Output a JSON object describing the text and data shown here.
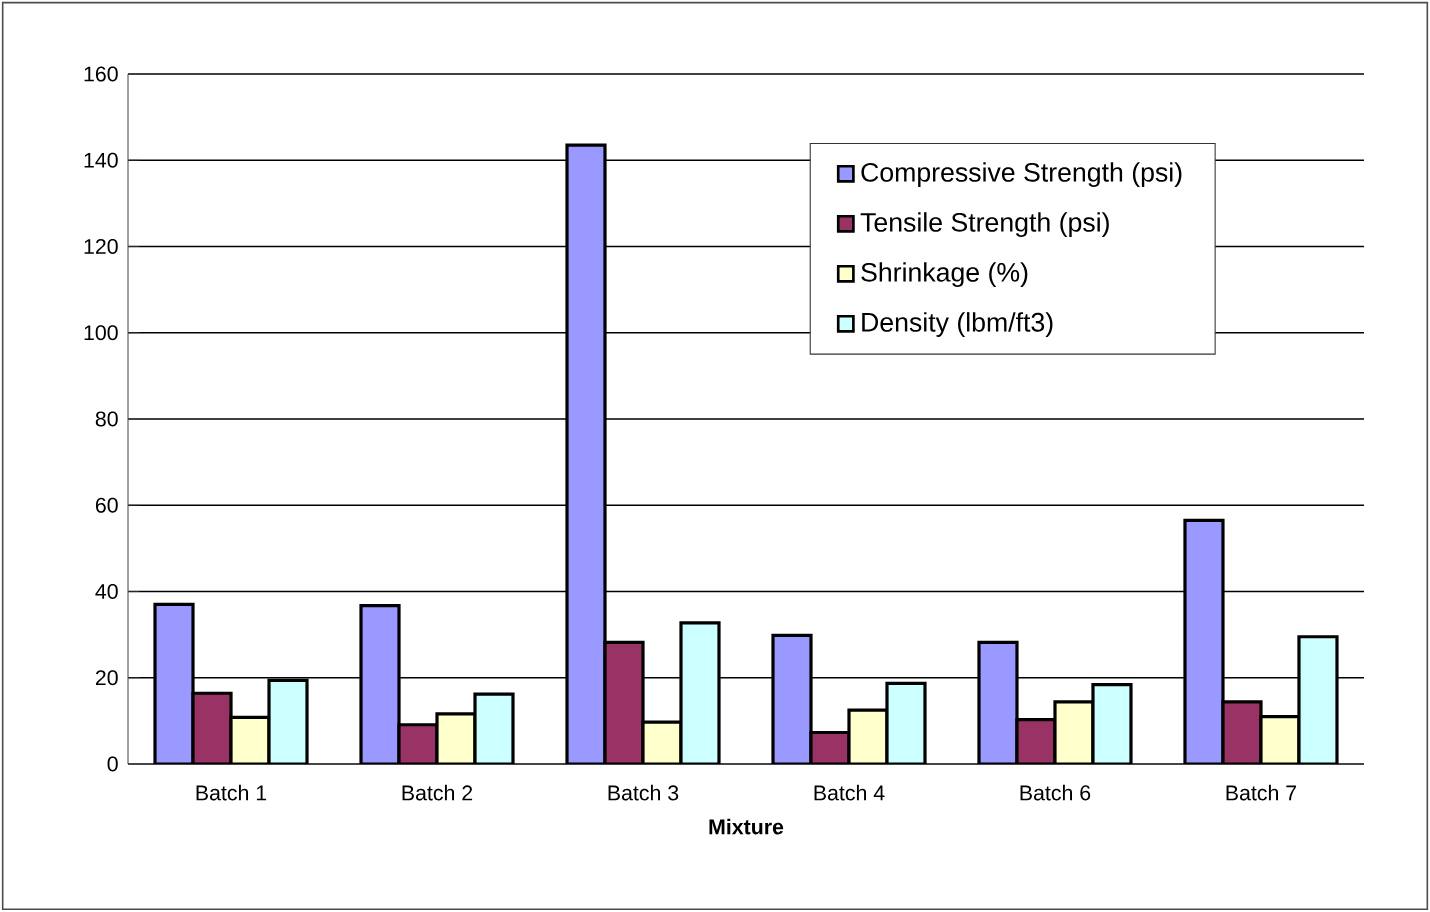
{
  "chart_data": {
    "type": "bar",
    "xlabel": "Mixture",
    "categories": [
      "Batch 1",
      "Batch 2",
      "Batch 3",
      "Batch 4",
      "Batch 6",
      "Batch 7"
    ],
    "series": [
      {
        "name": "Compressive Strength (psi)",
        "color": "#9999ff",
        "values": [
          37.0,
          36.7,
          143.5,
          29.8,
          28.2,
          56.5
        ]
      },
      {
        "name": "Tensile Strength (psi)",
        "color": "#993366",
        "values": [
          16.4,
          9.1,
          28.2,
          7.3,
          10.3,
          14.4
        ]
      },
      {
        "name": "Shrinkage (%)",
        "color": "#ffffcc",
        "values": [
          10.8,
          11.6,
          9.7,
          12.5,
          14.4,
          11.0
        ]
      },
      {
        "name": "Density (lbm/ft3)",
        "color": "#ccffff",
        "values": [
          19.4,
          16.2,
          32.7,
          18.7,
          18.4,
          29.5
        ]
      }
    ],
    "ylim": [
      0,
      160
    ],
    "yticks": [
      0,
      20,
      40,
      60,
      80,
      100,
      120,
      140,
      160
    ],
    "grid": "y",
    "legend": "top right"
  }
}
